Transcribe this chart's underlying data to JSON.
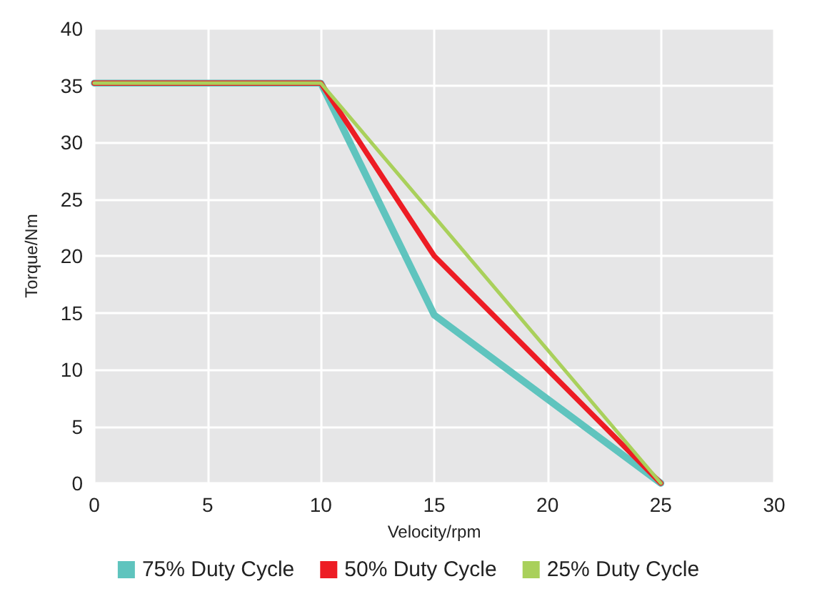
{
  "chart_data": {
    "type": "line",
    "xlabel": "Velocity/rpm",
    "ylabel": "Torque/Nm",
    "xlim": [
      0,
      30
    ],
    "xticks": [
      0,
      5,
      10,
      15,
      20,
      25,
      30
    ],
    "ylim": [
      0,
      40
    ],
    "yticks": [
      0,
      5,
      10,
      15,
      20,
      25,
      30,
      35,
      40
    ],
    "grid": true,
    "legend": "bottom",
    "marker": "none",
    "line_style": "solid",
    "series": [
      {
        "name": "75% Duty Cycle",
        "color": "#5fc4be",
        "x": [
          0,
          10,
          15,
          25
        ],
        "values": [
          35.2,
          35.2,
          14.8,
          0
        ]
      },
      {
        "name": "50% Duty Cycle",
        "color": "#ed1c24",
        "x": [
          0,
          10,
          15,
          25
        ],
        "values": [
          35.2,
          35.2,
          20,
          0
        ]
      },
      {
        "name": "25% Duty Cycle",
        "color": "#a9d05b",
        "x": [
          0,
          10,
          25
        ],
        "values": [
          35.2,
          35.2,
          0
        ]
      }
    ]
  }
}
